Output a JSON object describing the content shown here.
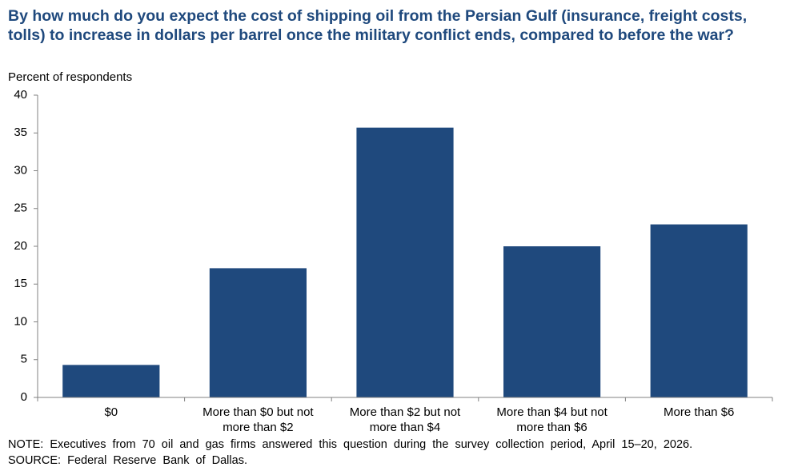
{
  "chart_data": {
    "type": "bar",
    "title": "By how much do you expect the cost of shipping oil from the Persian Gulf (insurance, freight costs, tolls) to increase in dollars per barrel once the military  conflict ends, compared to before the war?",
    "y_label": "Percent of respondents",
    "categories": [
      "$0",
      "More than $0 but not more than $2",
      "More than $2 but not more than $4",
      "More than $4 but not more than $6",
      "More than $6"
    ],
    "values": [
      4.3,
      17.1,
      35.7,
      20.0,
      22.9
    ],
    "color": "#1f497d",
    "ylim": [
      0,
      40
    ],
    "yticks": [
      0,
      5,
      10,
      15,
      20,
      25,
      30,
      35,
      40
    ],
    "grid": false,
    "note": "NOTE:  Executives  from  70  oil  and  gas  firms  answered  this  question  during  the  survey  collection  period,  April  15–20,  2026.",
    "source": "SOURCE:  Federal  Reserve  Bank  of  Dallas."
  }
}
